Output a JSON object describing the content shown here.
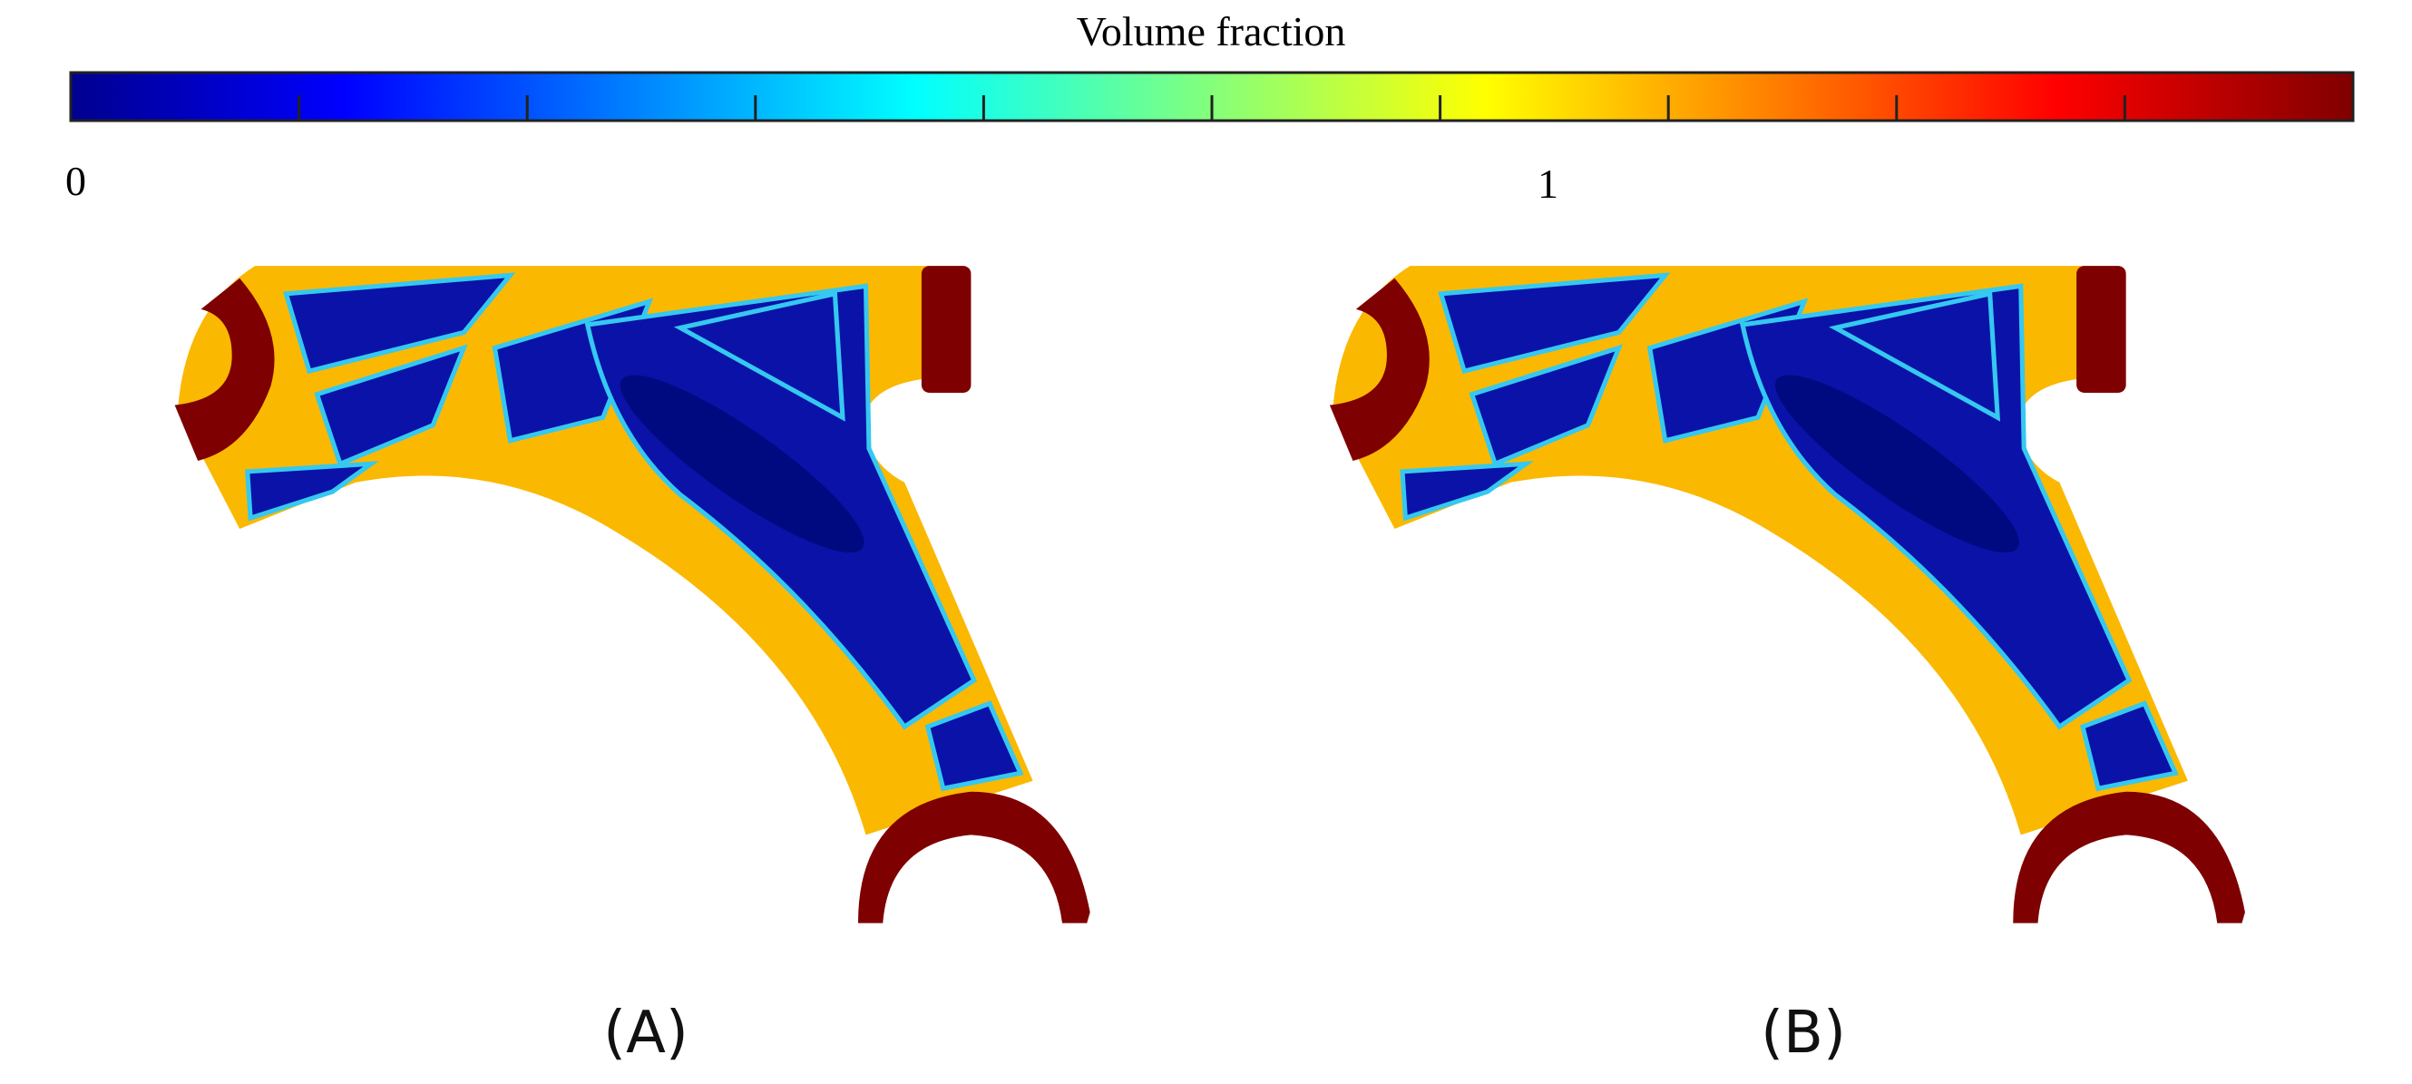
{
  "colorbar": {
    "title": "Volume fraction",
    "labels": [
      "0",
      "1"
    ]
  },
  "panels": [
    {
      "label": "(A)"
    },
    {
      "label": "(B)"
    }
  ]
}
